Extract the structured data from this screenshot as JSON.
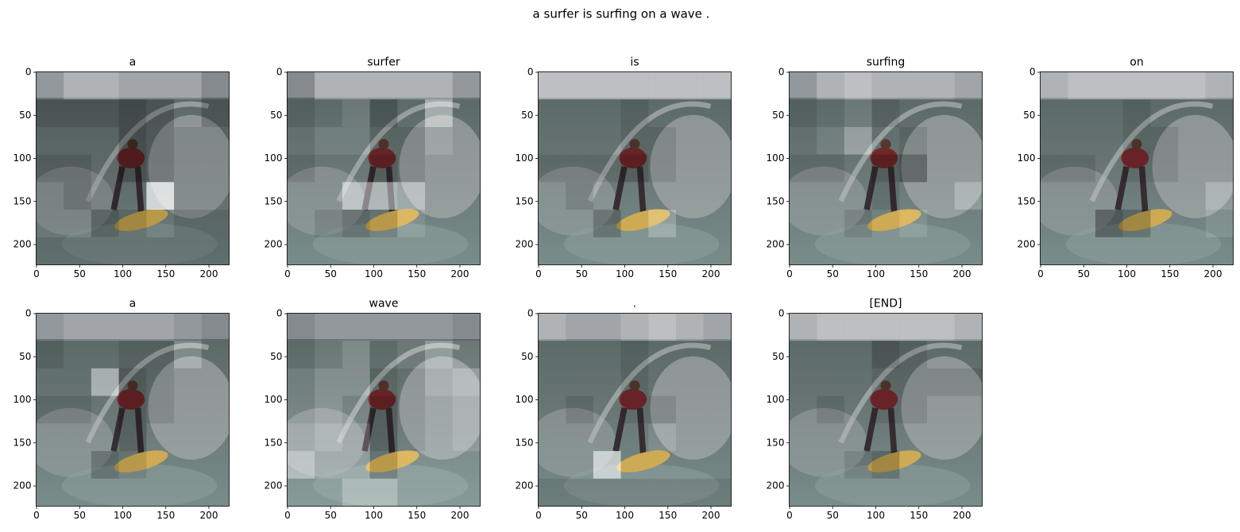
{
  "title": "a surfer is surfing on a wave .",
  "chart_data": [
    {
      "type": "image",
      "title": "a",
      "xlim": [
        -0.5,
        223.5
      ],
      "ylim": [
        223.5,
        -0.5
      ],
      "xticks": [
        0,
        50,
        100,
        150,
        200
      ],
      "yticks": [
        0,
        50,
        100,
        150,
        200
      ],
      "attention": [
        [
          0.5,
          0.7,
          0.7,
          0.6,
          0.6,
          0.6,
          0.4
        ],
        [
          0.2,
          0.2,
          0.2,
          0.1,
          0.2,
          0.4,
          0.2
        ],
        [
          0.3,
          0.3,
          0.3,
          0.1,
          0.2,
          0.3,
          0.3
        ],
        [
          0.2,
          0.2,
          0.3,
          0.1,
          0.2,
          0.3,
          0.3
        ],
        [
          0.3,
          0.2,
          0.3,
          0.3,
          1.0,
          0.3,
          0.3
        ],
        [
          0.3,
          0.3,
          0.1,
          0.2,
          0.3,
          0.2,
          0.2
        ],
        [
          0.2,
          0.2,
          0.2,
          0.2,
          0.2,
          0.2,
          0.2
        ]
      ]
    },
    {
      "type": "image",
      "title": "surfer",
      "xlim": [
        -0.5,
        223.5
      ],
      "ylim": [
        223.5,
        -0.5
      ],
      "xticks": [
        0,
        50,
        100,
        150,
        200
      ],
      "yticks": [
        0,
        50,
        100,
        150,
        200
      ],
      "attention": [
        [
          0.4,
          0.7,
          0.7,
          0.7,
          0.7,
          0.7,
          0.5
        ],
        [
          0.3,
          0.4,
          0.5,
          0.2,
          0.4,
          0.8,
          0.4
        ],
        [
          0.4,
          0.5,
          0.5,
          0.3,
          0.3,
          0.5,
          0.4
        ],
        [
          0.3,
          0.4,
          0.4,
          0.2,
          0.3,
          0.4,
          0.4
        ],
        [
          0.4,
          0.4,
          0.8,
          0.8,
          0.7,
          0.4,
          0.4
        ],
        [
          0.4,
          0.3,
          0.2,
          0.3,
          0.5,
          0.4,
          0.4
        ],
        [
          0.4,
          0.4,
          0.4,
          0.4,
          0.4,
          0.4,
          0.4
        ]
      ]
    },
    {
      "type": "image",
      "title": "is",
      "xlim": [
        -0.5,
        223.5
      ],
      "ylim": [
        223.5,
        -0.5
      ],
      "xticks": [
        0,
        50,
        100,
        150,
        200
      ],
      "yticks": [
        0,
        50,
        100,
        150,
        200
      ],
      "attention": [
        [
          0.8,
          0.8,
          0.8,
          0.8,
          0.8,
          0.8,
          0.8
        ],
        [
          0.4,
          0.4,
          0.4,
          0.3,
          0.4,
          0.4,
          0.4
        ],
        [
          0.4,
          0.4,
          0.4,
          0.3,
          0.3,
          0.4,
          0.4
        ],
        [
          0.3,
          0.3,
          0.3,
          0.2,
          0.3,
          0.4,
          0.4
        ],
        [
          0.4,
          0.3,
          0.4,
          0.4,
          0.4,
          0.4,
          0.4
        ],
        [
          0.4,
          0.4,
          0.2,
          0.4,
          0.6,
          0.4,
          0.4
        ],
        [
          0.4,
          0.4,
          0.4,
          0.4,
          0.4,
          0.4,
          0.4
        ]
      ]
    },
    {
      "type": "image",
      "title": "surfing",
      "xlim": [
        -0.5,
        223.5
      ],
      "ylim": [
        223.5,
        -0.5
      ],
      "xticks": [
        0,
        50,
        100,
        150,
        200
      ],
      "yticks": [
        0,
        50,
        100,
        150,
        200
      ],
      "attention": [
        [
          0.5,
          0.7,
          0.8,
          0.7,
          0.7,
          0.7,
          0.6
        ],
        [
          0.3,
          0.4,
          0.5,
          0.3,
          0.4,
          0.4,
          0.4
        ],
        [
          0.4,
          0.5,
          0.7,
          0.4,
          0.3,
          0.4,
          0.4
        ],
        [
          0.3,
          0.3,
          0.4,
          0.2,
          0.1,
          0.4,
          0.4
        ],
        [
          0.4,
          0.4,
          0.4,
          0.3,
          0.4,
          0.4,
          0.6
        ],
        [
          0.4,
          0.4,
          0.3,
          0.4,
          0.5,
          0.4,
          0.4
        ],
        [
          0.4,
          0.4,
          0.4,
          0.4,
          0.4,
          0.4,
          0.4
        ]
      ]
    },
    {
      "type": "image",
      "title": "on",
      "xlim": [
        -0.5,
        223.5
      ],
      "ylim": [
        223.5,
        -0.5
      ],
      "xticks": [
        0,
        50,
        100,
        150,
        200
      ],
      "yticks": [
        0,
        50,
        100,
        150,
        200
      ],
      "attention": [
        [
          0.7,
          0.8,
          0.8,
          0.8,
          0.8,
          0.8,
          0.7
        ],
        [
          0.4,
          0.4,
          0.4,
          0.3,
          0.4,
          0.4,
          0.4
        ],
        [
          0.4,
          0.4,
          0.4,
          0.3,
          0.3,
          0.4,
          0.4
        ],
        [
          0.3,
          0.3,
          0.4,
          0.3,
          0.3,
          0.4,
          0.4
        ],
        [
          0.4,
          0.4,
          0.4,
          0.4,
          0.4,
          0.4,
          0.6
        ],
        [
          0.4,
          0.4,
          0.1,
          0.2,
          0.4,
          0.4,
          0.5
        ],
        [
          0.4,
          0.4,
          0.4,
          0.4,
          0.4,
          0.4,
          0.4
        ]
      ]
    },
    {
      "type": "image",
      "title": "a",
      "xlim": [
        -0.5,
        223.5
      ],
      "ylim": [
        223.5,
        -0.5
      ],
      "xticks": [
        0,
        50,
        100,
        150,
        200
      ],
      "yticks": [
        0,
        50,
        100,
        150,
        200
      ],
      "attention": [
        [
          0.5,
          0.6,
          0.6,
          0.6,
          0.6,
          0.5,
          0.4
        ],
        [
          0.3,
          0.4,
          0.4,
          0.3,
          0.3,
          0.6,
          0.4
        ],
        [
          0.4,
          0.4,
          0.8,
          0.2,
          0.3,
          0.4,
          0.4
        ],
        [
          0.3,
          0.3,
          0.4,
          0.2,
          0.3,
          0.4,
          0.4
        ],
        [
          0.4,
          0.4,
          0.4,
          0.2,
          0.4,
          0.4,
          0.4
        ],
        [
          0.4,
          0.4,
          0.2,
          0.3,
          0.4,
          0.4,
          0.4
        ],
        [
          0.4,
          0.4,
          0.4,
          0.4,
          0.4,
          0.4,
          0.4
        ]
      ]
    },
    {
      "type": "image",
      "title": "wave",
      "xlim": [
        -0.5,
        223.5
      ],
      "ylim": [
        223.5,
        -0.5
      ],
      "xticks": [
        0,
        50,
        100,
        150,
        200
      ],
      "yticks": [
        0,
        50,
        100,
        150,
        200
      ],
      "attention": [
        [
          0.4,
          0.5,
          0.5,
          0.5,
          0.5,
          0.5,
          0.4
        ],
        [
          0.4,
          0.5,
          0.6,
          0.4,
          0.5,
          0.7,
          0.5
        ],
        [
          0.5,
          0.6,
          0.6,
          0.3,
          0.4,
          0.6,
          0.7
        ],
        [
          0.5,
          0.6,
          0.5,
          0.2,
          0.4,
          0.5,
          0.6
        ],
        [
          0.6,
          0.7,
          0.6,
          0.2,
          0.4,
          0.5,
          0.6
        ],
        [
          0.8,
          0.6,
          0.6,
          0.3,
          0.5,
          0.5,
          0.5
        ],
        [
          0.5,
          0.5,
          0.7,
          0.7,
          0.5,
          0.5,
          0.5
        ]
      ]
    },
    {
      "type": "image",
      "title": ".",
      "xlim": [
        -0.5,
        223.5
      ],
      "ylim": [
        223.5,
        -0.5
      ],
      "xticks": [
        0,
        50,
        100,
        150,
        200
      ],
      "yticks": [
        0,
        50,
        100,
        150,
        200
      ],
      "attention": [
        [
          0.7,
          0.6,
          0.6,
          0.7,
          0.8,
          0.7,
          0.6
        ],
        [
          0.4,
          0.4,
          0.4,
          0.3,
          0.4,
          0.4,
          0.4
        ],
        [
          0.4,
          0.4,
          0.4,
          0.3,
          0.4,
          0.4,
          0.4
        ],
        [
          0.4,
          0.3,
          0.4,
          0.3,
          0.3,
          0.4,
          0.4
        ],
        [
          0.4,
          0.4,
          0.4,
          0.4,
          0.5,
          0.4,
          0.4
        ],
        [
          0.4,
          0.4,
          0.9,
          0.4,
          0.4,
          0.4,
          0.4
        ],
        [
          0.3,
          0.3,
          0.3,
          0.3,
          0.3,
          0.3,
          0.3
        ]
      ]
    },
    {
      "type": "image",
      "title": "[END]",
      "xlim": [
        -0.5,
        223.5
      ],
      "ylim": [
        223.5,
        -0.5
      ],
      "xticks": [
        0,
        50,
        100,
        150,
        200
      ],
      "yticks": [
        0,
        50,
        100,
        150,
        200
      ],
      "attention": [
        [
          0.7,
          0.8,
          0.8,
          0.8,
          0.8,
          0.8,
          0.7
        ],
        [
          0.4,
          0.4,
          0.4,
          0.2,
          0.3,
          0.4,
          0.4
        ],
        [
          0.4,
          0.4,
          0.4,
          0.3,
          0.3,
          0.3,
          0.3
        ],
        [
          0.4,
          0.3,
          0.4,
          0.3,
          0.3,
          0.4,
          0.4
        ],
        [
          0.4,
          0.4,
          0.4,
          0.4,
          0.4,
          0.4,
          0.4
        ],
        [
          0.4,
          0.4,
          0.3,
          0.2,
          0.4,
          0.4,
          0.4
        ],
        [
          0.4,
          0.4,
          0.4,
          0.4,
          0.4,
          0.4,
          0.4
        ]
      ]
    }
  ]
}
